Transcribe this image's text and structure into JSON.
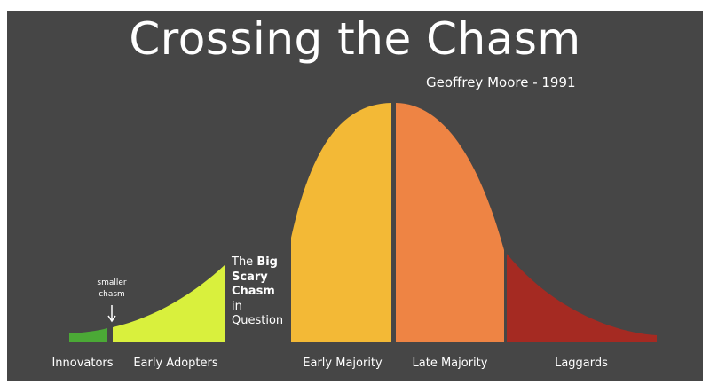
{
  "title": "Crossing the Chasm",
  "subtitle": "Geoffrey Moore - 1991",
  "segments": [
    {
      "label": "Innovators",
      "color": "#4ba936"
    },
    {
      "label": "Early Adopters",
      "color": "#d9f03d"
    },
    {
      "label": "Early Majority",
      "color": "#f3b936"
    },
    {
      "label": "Late Majority",
      "color": "#ee8444"
    },
    {
      "label": "Laggards",
      "color": "#a52a22"
    }
  ],
  "smaller_chasm_note": {
    "line1": "smaller",
    "line2": "chasm"
  },
  "big_chasm_note": {
    "line1_a": "The ",
    "line1_b": "Big",
    "line2": "Scary",
    "line3": "Chasm",
    "line4": "in",
    "line5": "Question"
  }
}
